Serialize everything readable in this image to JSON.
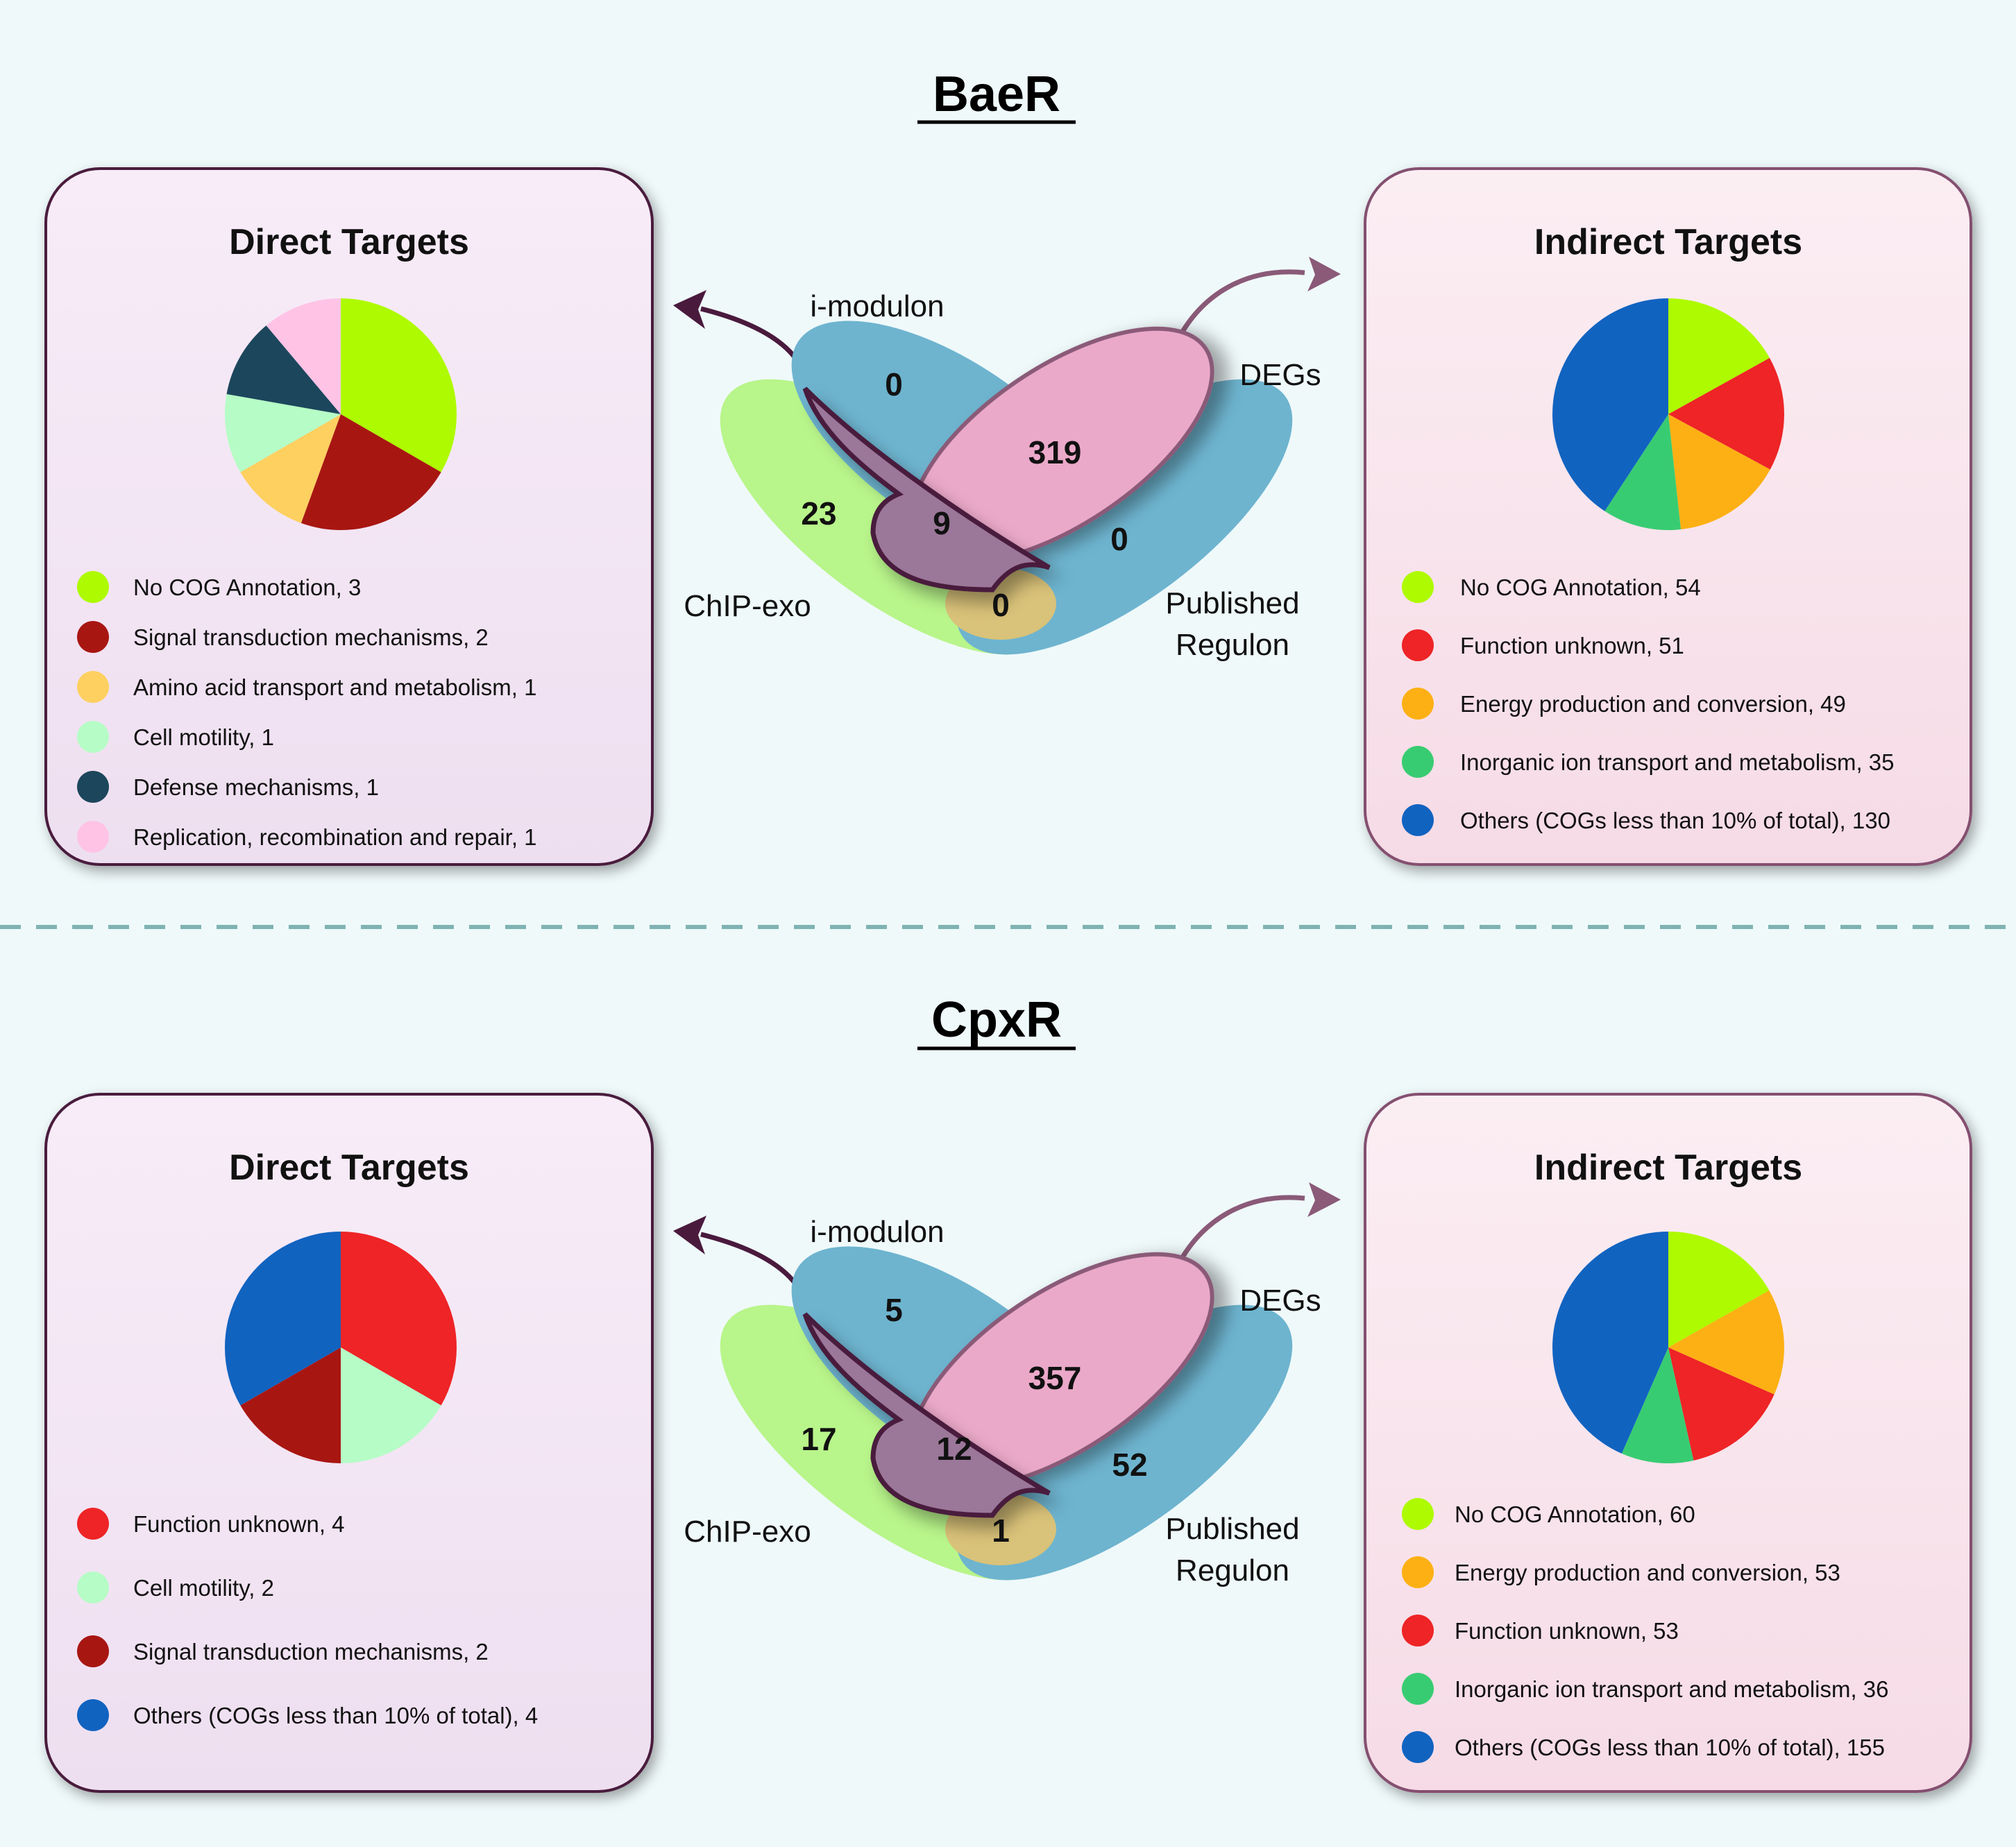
{
  "sections": [
    {
      "title": "BaeR",
      "direct": {
        "title": "Direct Targets",
        "items": [
          {
            "label": "No COG Annotation, 3",
            "value": 3,
            "color": "#aefa00"
          },
          {
            "label": "Signal transduction mechanisms, 2",
            "value": 2,
            "color": "#a81612"
          },
          {
            "label": "Amino acid transport and metabolism, 1",
            "value": 1,
            "color": "#fdd060"
          },
          {
            "label": "Cell motility, 1",
            "value": 1,
            "color": "#b6fcc6"
          },
          {
            "label": "Defense mechanisms, 1",
            "value": 1,
            "color": "#1c465c"
          },
          {
            "label": "Replication, recombination and repair, 1",
            "value": 1,
            "color": "#ffc3e6"
          }
        ]
      },
      "indirect": {
        "title": "Indirect Targets",
        "items": [
          {
            "label": "No COG Annotation, 54",
            "value": 54,
            "color": "#aefa00"
          },
          {
            "label": "Function unknown, 51",
            "value": 51,
            "color": "#ee2426"
          },
          {
            "label": "Energy production and conversion, 49",
            "value": 49,
            "color": "#fdb014"
          },
          {
            "label": "Inorganic ion transport and metabolism, 35",
            "value": 35,
            "color": "#38cc72"
          },
          {
            "label": "Others (COGs less than 10% of total), 130",
            "value": 130,
            "color": "#1163c0"
          }
        ]
      },
      "venn": {
        "labels": {
          "imodulon": "i-modulon",
          "degs": "DEGs",
          "chipexo": "ChIP-exo",
          "published_line1": "Published",
          "published_line2": "Regulon"
        },
        "counts": {
          "imodulon_only": "0",
          "degs_only": "319",
          "chipexo_only": "23",
          "center": "9",
          "published_only": "0",
          "bottom": "0"
        }
      }
    },
    {
      "title": "CpxR",
      "direct": {
        "title": "Direct Targets",
        "items": [
          {
            "label": "Function unknown, 4",
            "value": 4,
            "color": "#ee2426"
          },
          {
            "label": "Cell motility, 2",
            "value": 2,
            "color": "#b6fcc6"
          },
          {
            "label": "Signal transduction mechanisms, 2",
            "value": 2,
            "color": "#a81612"
          },
          {
            "label": "Others (COGs less than 10% of total), 4",
            "value": 4,
            "color": "#1163c0"
          }
        ]
      },
      "indirect": {
        "title": "Indirect Targets",
        "items": [
          {
            "label": "No COG Annotation, 60",
            "value": 60,
            "color": "#aefa00"
          },
          {
            "label": "Energy production and conversion, 53",
            "value": 53,
            "color": "#fdb014"
          },
          {
            "label": "Function unknown, 53",
            "value": 53,
            "color": "#ee2426"
          },
          {
            "label": "Inorganic ion transport and metabolism, 36",
            "value": 36,
            "color": "#38cc72"
          },
          {
            "label": "Others (COGs less than 10% of total), 155",
            "value": 155,
            "color": "#1163c0"
          }
        ]
      },
      "venn": {
        "labels": {
          "imodulon": "i-modulon",
          "degs": "DEGs",
          "chipexo": "ChIP-exo",
          "published_line1": "Published",
          "published_line2": "Regulon"
        },
        "counts": {
          "imodulon_only": "5",
          "degs_only": "357",
          "chipexo_only": "17",
          "center": "12",
          "published_only": "52",
          "bottom": "1"
        }
      }
    }
  ],
  "colors": {
    "background": "#eff9fa",
    "direct_panel_top": "#f8ecf8",
    "direct_panel_bottom": "#eedff0",
    "direct_panel_border": "#4a1a3d",
    "indirect_panel_top": "#fbeef3",
    "indirect_panel_bottom": "#f6dbe6",
    "indirect_panel_border": "#845070",
    "divider": "#7fb3b3",
    "chipexo_fill": "#b8f58a",
    "imodulon_fill": "#6eb4cf",
    "published_fill": "#6eb4cf",
    "degs_fill": "#eba9c9",
    "center_fill": "#9b7799",
    "bottom_fill": "#d9c279",
    "arrow_dark": "#4a1a3d",
    "arrow_light": "#8a5a78"
  }
}
